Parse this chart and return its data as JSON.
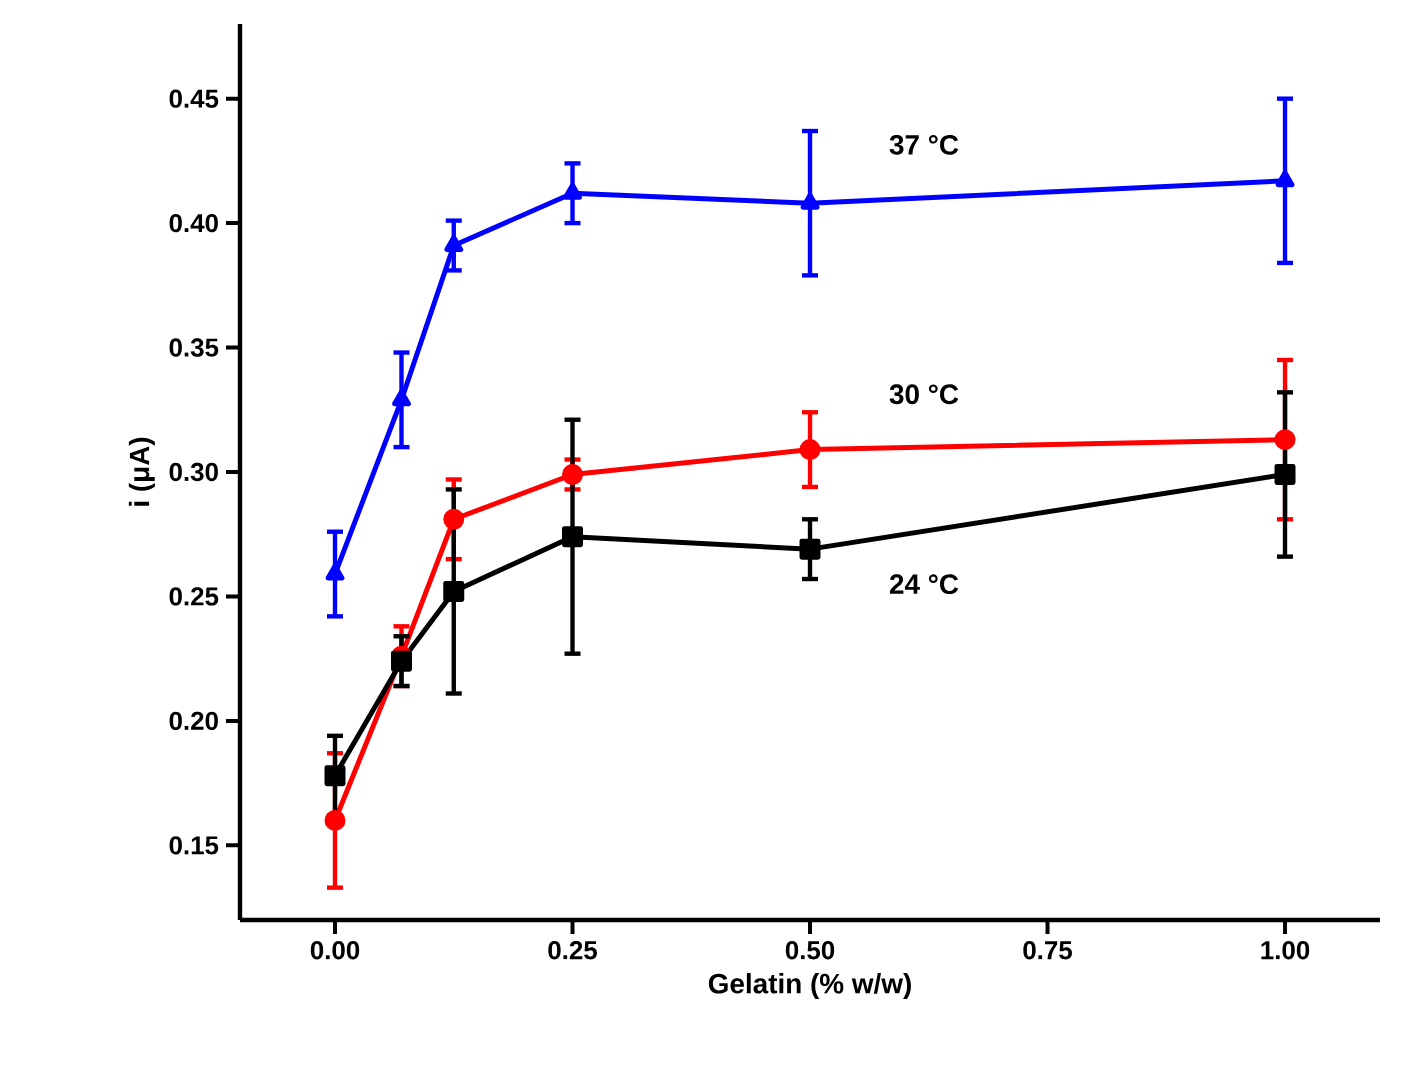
{
  "chart_data": {
    "type": "line",
    "xlabel": "Gelatin (% w/w)",
    "ylabel": "i (μA)",
    "x": [
      0,
      0.07,
      0.125,
      0.25,
      0.5,
      1.0
    ],
    "series": [
      {
        "name": "37 °C",
        "color": "#0000ff",
        "marker": "triangle",
        "values": [
          0.259,
          0.329,
          0.391,
          0.412,
          0.408,
          0.417
        ],
        "errors": [
          0.017,
          0.019,
          0.01,
          0.012,
          0.029,
          0.033
        ]
      },
      {
        "name": "30 °C",
        "color": "#ff0000",
        "marker": "circle",
        "values": [
          0.16,
          0.226,
          0.281,
          0.299,
          0.309,
          0.313
        ],
        "errors": [
          0.027,
          0.012,
          0.016,
          0.006,
          0.015,
          0.032
        ]
      },
      {
        "name": "24 °C",
        "color": "#000000",
        "marker": "square",
        "values": [
          0.178,
          0.224,
          0.252,
          0.274,
          0.269,
          0.299
        ],
        "errors": [
          0.016,
          0.01,
          0.041,
          0.047,
          0.012,
          0.033
        ]
      }
    ],
    "xlim": [
      -0.1,
      1.1
    ],
    "ylim": [
      0.12,
      0.48
    ],
    "xticks": [
      {
        "value": 0,
        "label": "0.00"
      },
      {
        "value": 0.25,
        "label": "0.25"
      },
      {
        "value": 0.5,
        "label": "0.50"
      },
      {
        "value": 0.75,
        "label": "0.75"
      },
      {
        "value": 1.0,
        "label": "1.00"
      }
    ],
    "yticks": [
      0.15,
      {
        "value": 0.2,
        "label": "0.20"
      },
      0.25,
      {
        "value": 0.3,
        "label": "0.30"
      },
      0.35,
      {
        "value": 0.4,
        "label": "0.40"
      },
      0.45
    ],
    "grid": false
  }
}
